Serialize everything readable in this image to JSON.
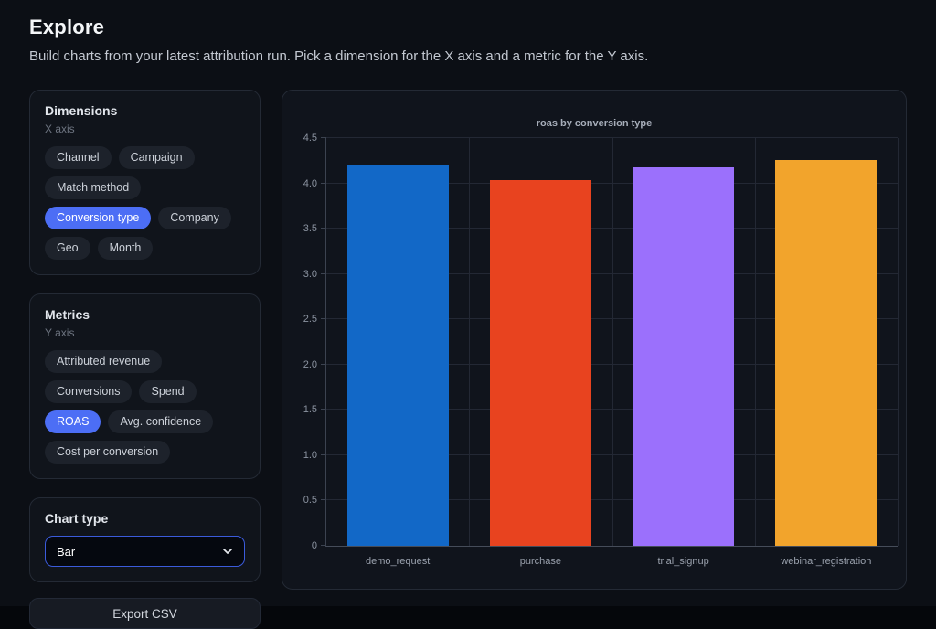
{
  "header": {
    "title": "Explore",
    "subtitle": "Build charts from your latest attribution run. Pick a dimension for the X axis and a metric for the Y axis."
  },
  "dimensions_panel": {
    "title": "Dimensions",
    "axis_label": "X axis",
    "chips": [
      {
        "label": "Channel",
        "selected": false
      },
      {
        "label": "Campaign",
        "selected": false
      },
      {
        "label": "Match method",
        "selected": false
      },
      {
        "label": "Conversion type",
        "selected": true
      },
      {
        "label": "Company",
        "selected": false
      },
      {
        "label": "Geo",
        "selected": false
      },
      {
        "label": "Month",
        "selected": false
      }
    ]
  },
  "metrics_panel": {
    "title": "Metrics",
    "axis_label": "Y axis",
    "chips": [
      {
        "label": "Attributed revenue",
        "selected": false
      },
      {
        "label": "Conversions",
        "selected": false
      },
      {
        "label": "Spend",
        "selected": false
      },
      {
        "label": "ROAS",
        "selected": true
      },
      {
        "label": "Avg. confidence",
        "selected": false
      },
      {
        "label": "Cost per conversion",
        "selected": false
      }
    ]
  },
  "chart_type_panel": {
    "title": "Chart type",
    "selected_option": "Bar"
  },
  "export_button_label": "Export CSV",
  "colors": {
    "accent": "#4c6ef5",
    "select_border": "#3b5bdb",
    "bar_blue": "#1268c7",
    "bar_red": "#e8431f",
    "bar_purple": "#9b70fc",
    "bar_amber": "#f2a42c"
  },
  "chart_data": {
    "type": "bar",
    "title": "roas by conversion type",
    "categories": [
      "demo_request",
      "purchase",
      "trial_signup",
      "webinar_registration"
    ],
    "values": [
      4.2,
      4.04,
      4.18,
      4.26
    ],
    "bar_colors": [
      "#1268c7",
      "#e8431f",
      "#9b70fc",
      "#f2a42c"
    ],
    "xlabel": "",
    "ylabel": "",
    "ylim": [
      0,
      4.5
    ],
    "ytick_values": [
      0,
      0.5,
      1.0,
      1.5,
      2.0,
      2.5,
      3.0,
      3.5,
      4.0,
      4.5
    ],
    "ytick_labels": [
      "0",
      "0.5",
      "1.0",
      "1.5",
      "2.0",
      "2.5",
      "3.0",
      "3.5",
      "4.0",
      "4.5"
    ],
    "grid": true,
    "legend": false
  }
}
